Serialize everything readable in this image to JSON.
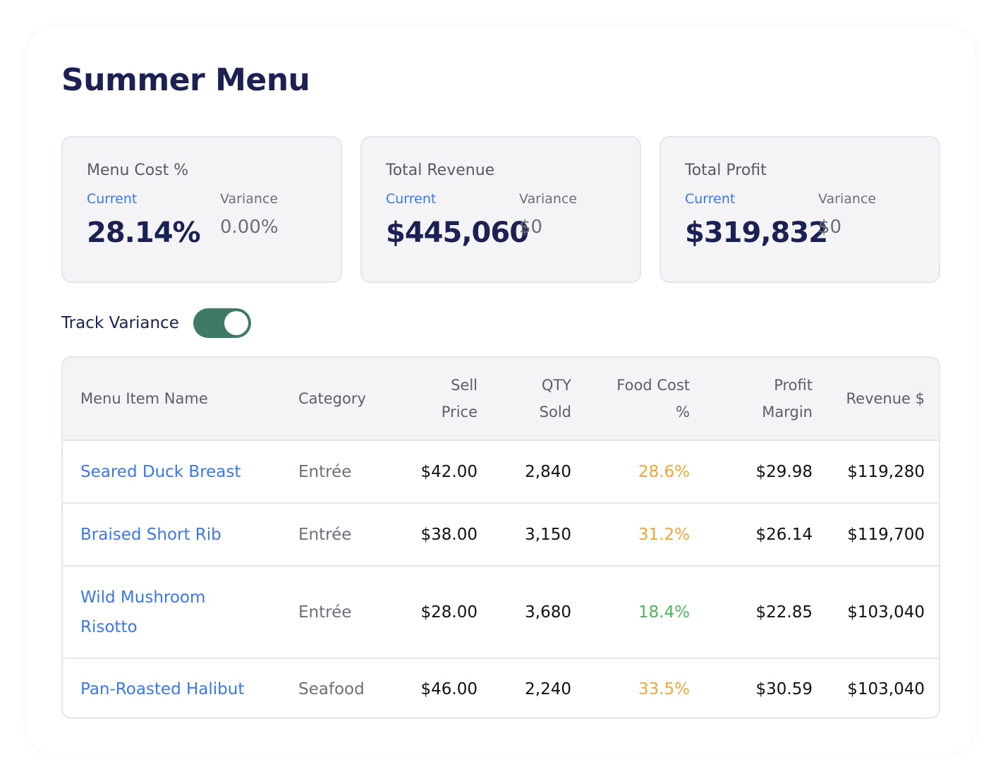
{
  "page": {
    "title": "Summer Menu"
  },
  "metrics": [
    {
      "label": "Menu Cost %",
      "current_label": "Current",
      "current_value": "28.14%",
      "variance_label": "Variance",
      "variance_value": "0.00%"
    },
    {
      "label": "Total Revenue",
      "current_label": "Current",
      "current_value": "$445,060",
      "variance_label": "Variance",
      "variance_value": "$0"
    },
    {
      "label": "Total Profit",
      "current_label": "Current",
      "current_value": "$319,832",
      "variance_label": "Variance",
      "variance_value": "$0"
    }
  ],
  "track_variance": {
    "label": "Track Variance",
    "enabled": true,
    "on_color": "#3f7a68"
  },
  "table": {
    "headers": {
      "name": "Menu Item Name",
      "category": "Category",
      "sell_price": [
        "Sell",
        "Price"
      ],
      "qty_sold": [
        "QTY",
        "Sold"
      ],
      "food_cost": [
        "Food Cost",
        "%"
      ],
      "profit_margin": [
        "Profit",
        "Margin"
      ],
      "revenue": "Revenue $"
    },
    "rows": [
      {
        "name": "Seared Duck Breast",
        "category": "Entrée",
        "sell_price": "$42.00",
        "qty_sold": "2,840",
        "food_cost": "28.6%",
        "food_cost_color": "#f0a63a",
        "profit_margin": "$29.98",
        "revenue": "$119,280"
      },
      {
        "name": "Braised Short Rib",
        "category": "Entrée",
        "sell_price": "$38.00",
        "qty_sold": "3,150",
        "food_cost": "31.2%",
        "food_cost_color": "#f0a63a",
        "profit_margin": "$26.14",
        "revenue": "$119,700"
      },
      {
        "name": "Wild Mushroom Risotto",
        "category": "Entrée",
        "sell_price": "$28.00",
        "qty_sold": "3,680",
        "food_cost": "18.4%",
        "food_cost_color": "#4cb85a",
        "profit_margin": "$22.85",
        "revenue": "$103,040"
      },
      {
        "name": "Pan-Roasted Halibut",
        "category": "Seafood",
        "sell_price": "$46.00",
        "qty_sold": "2,240",
        "food_cost": "33.5%",
        "food_cost_color": "#f0a63a",
        "profit_margin": "$30.59",
        "revenue": "$103,040"
      }
    ]
  },
  "colors": {
    "title": "#1b2152",
    "link": "#3b78e7",
    "panel_bg": "#f4f4f6",
    "border": "#e4e5ee"
  }
}
